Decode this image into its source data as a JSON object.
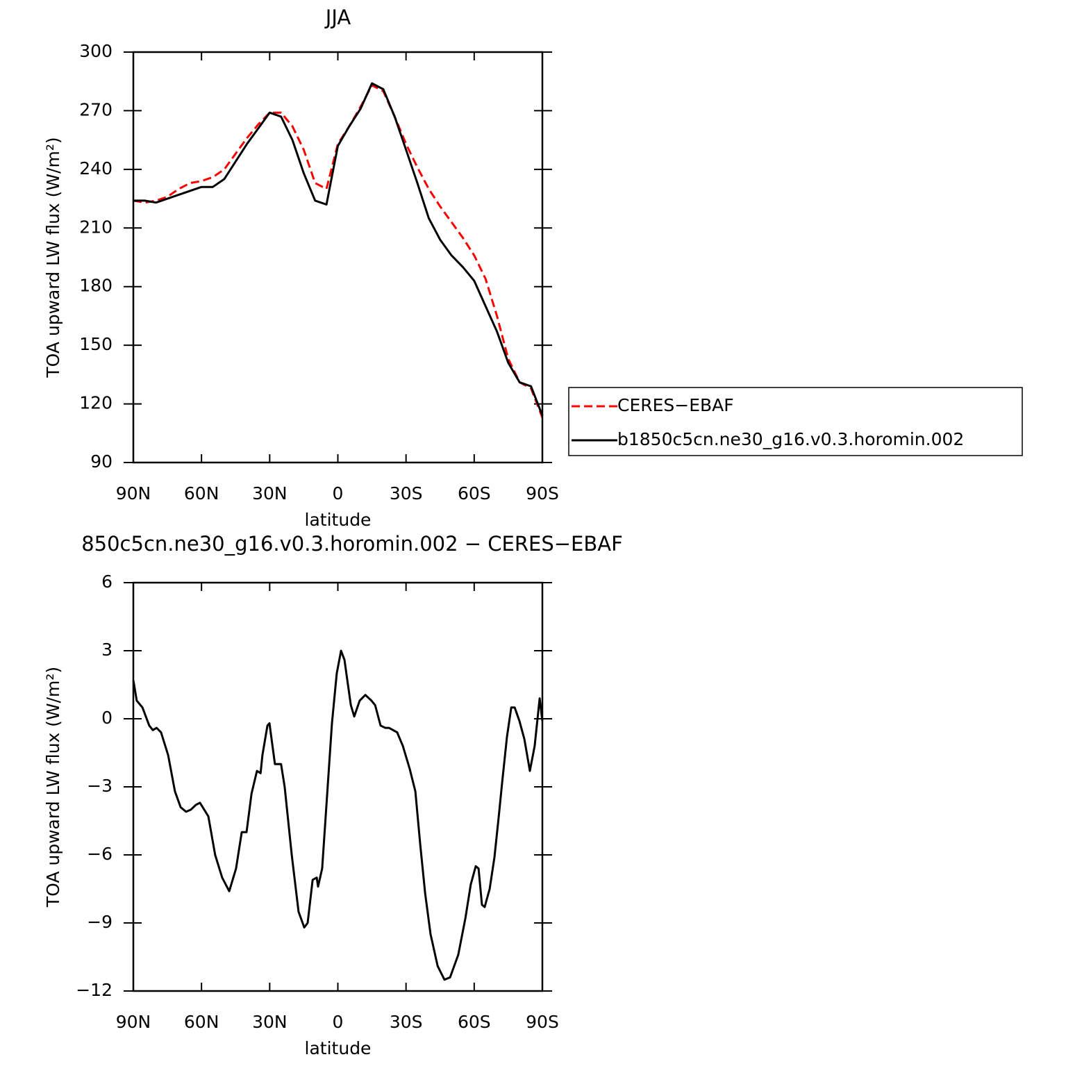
{
  "chart_data": [
    {
      "type": "line",
      "title": "JJA",
      "xlabel": "latitude",
      "ylabel": "TOA upward LW flux (W/m²)",
      "x": [
        90,
        85,
        80,
        75,
        70,
        65,
        60,
        55,
        50,
        45,
        40,
        35,
        30,
        25,
        20,
        15,
        10,
        5,
        0,
        -5,
        -10,
        -15,
        -20,
        -25,
        -30,
        -35,
        -40,
        -45,
        -50,
        -55,
        -60,
        -65,
        -70,
        -75,
        -80,
        -85,
        -90
      ],
      "series": [
        {
          "name": "CERES−EBAF",
          "color": "#ff0000",
          "linestyle": "dashed",
          "values": [
            224,
            223,
            224,
            226,
            230,
            233,
            234,
            236,
            240,
            248,
            256,
            263,
            269,
            269,
            262,
            250,
            233,
            230,
            253,
            262,
            272,
            283,
            280,
            267,
            253,
            241,
            230,
            221,
            213,
            205,
            196,
            184,
            165,
            143,
            131,
            128,
            113
          ]
        },
        {
          "name": "b1850c5cn.ne30_g16.v0.3.horomin.002",
          "color": "#000000",
          "linestyle": "solid",
          "values": [
            224,
            224,
            223,
            225,
            227,
            229,
            231,
            231,
            235,
            244,
            253,
            261,
            269,
            267,
            255,
            238,
            224,
            222,
            252,
            262,
            271,
            284,
            281,
            267,
            250,
            233,
            215,
            204,
            196,
            190,
            183,
            170,
            157,
            141,
            131,
            129,
            114
          ]
        }
      ],
      "xlim": [
        90,
        -90
      ],
      "xticks": [
        {
          "value": 90,
          "label": "90N"
        },
        {
          "value": 60,
          "label": "60N"
        },
        {
          "value": 30,
          "label": "30N"
        },
        0,
        {
          "value": -30,
          "label": "30S"
        },
        {
          "value": -60,
          "label": "60S"
        },
        {
          "value": -90,
          "label": "90S"
        }
      ],
      "ylim": [
        90,
        300
      ],
      "yticks": [
        90,
        120,
        150,
        180,
        210,
        240,
        270,
        300
      ],
      "legend": "right"
    },
    {
      "type": "line",
      "title": "850c5cn.ne30_g16.v0.3.horomin.002 − CERES−EBAF",
      "xlabel": "latitude",
      "ylabel": "TOA upward LW flux (W/m²)",
      "x": [
        90,
        88.5,
        86,
        83,
        81.4,
        79.8,
        77.8,
        74.7,
        71.7,
        69.2,
        66.8,
        64.6,
        62.5,
        60.7,
        57,
        54,
        50.9,
        47.8,
        44.8,
        42.3,
        40.2,
        38,
        35.6,
        34,
        33.2,
        31,
        30.1,
        27.7,
        25,
        23.4,
        20.3,
        17.3,
        14.8,
        13.3,
        11.1,
        9.3,
        8.7,
        6.9,
        2.6,
        0.5,
        -1.4,
        -2.9,
        -5.7,
        -7.2,
        -9.6,
        -12.1,
        -14.8,
        -16.4,
        -18.8,
        -20.9,
        -22.5,
        -26.1,
        -28.6,
        -31.6,
        -34.1,
        -36.2,
        -38.4,
        -40.8,
        -43.9,
        -46.9,
        -49.4,
        -53,
        -56.1,
        -58.5,
        -60.7,
        -61.9,
        -63.4,
        -64.6,
        -66.8,
        -68.9,
        -70.8,
        -72.3,
        -74.4,
        -76.3,
        -77.8,
        -79.9,
        -82.1,
        -84.5,
        -86.6,
        -88.8,
        -90
      ],
      "series": [
        {
          "color": "#000000",
          "linestyle": "solid",
          "values": [
            1.7,
            0.8,
            0.5,
            -0.3,
            -0.5,
            -0.4,
            -0.6,
            -1.6,
            -3.2,
            -3.9,
            -4.1,
            -4,
            -3.8,
            -3.7,
            -4.3,
            -6,
            -7,
            -7.6,
            -6.6,
            -5,
            -5,
            -3.3,
            -2.3,
            -2.4,
            -1.6,
            -0.3,
            -0.2,
            -2,
            -2,
            -3,
            -6,
            -8.5,
            -9.2,
            -9,
            -7.1,
            -7,
            -7.4,
            -6.6,
            -0.2,
            2,
            3,
            2.6,
            0.6,
            0.1,
            0.8,
            1.05,
            0.8,
            0.6,
            -0.3,
            -0.4,
            -0.4,
            -0.6,
            -1.2,
            -2.2,
            -3.2,
            -5.5,
            -7.7,
            -9.5,
            -10.9,
            -11.5,
            -11.4,
            -10.4,
            -8.8,
            -7.3,
            -6.5,
            -6.6,
            -8.2,
            -8.3,
            -7.5,
            -6.1,
            -4.3,
            -2.8,
            -0.8,
            0.5,
            0.5,
            -0.1,
            -0.9,
            -2.3,
            -1.2,
            0.9,
            -0.1
          ]
        }
      ],
      "xlim": [
        90,
        -90
      ],
      "xticks": [
        {
          "value": 90,
          "label": "90N"
        },
        {
          "value": 60,
          "label": "60N"
        },
        {
          "value": 30,
          "label": "30N"
        },
        0,
        {
          "value": -30,
          "label": "30S"
        },
        {
          "value": -60,
          "label": "60S"
        },
        {
          "value": -90,
          "label": "90S"
        }
      ],
      "ylim": [
        -12,
        6
      ],
      "yticks": [
        {
          "value": -12,
          "label": "−12"
        },
        {
          "value": -9,
          "label": "−9"
        },
        {
          "value": -6,
          "label": "−6"
        },
        {
          "value": -3,
          "label": "−3"
        },
        0,
        3,
        6
      ]
    }
  ]
}
